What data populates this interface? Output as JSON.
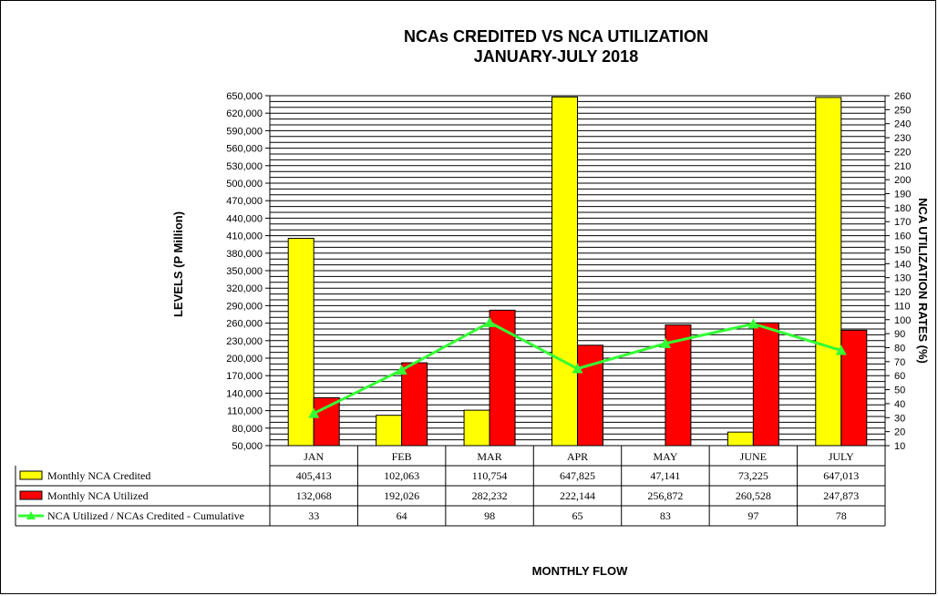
{
  "chart_data": {
    "type": "bar",
    "title": "NCAs CREDITED VS NCA UTILIZATION",
    "subtitle": "JANUARY-JULY 2018",
    "xlabel": "MONTHLY FLOW",
    "ylabel": "LEVELS (P Million)",
    "y2label": "NCA UTILIZATION RATES (%)",
    "categories": [
      "JAN",
      "FEB",
      "MAR",
      "APR",
      "MAY",
      "JUNE",
      "JULY"
    ],
    "ylim": [
      50000,
      650000
    ],
    "ystep": 30000,
    "y2lim": [
      10,
      260
    ],
    "y2step": 10,
    "grid": true,
    "legend": "table-bottom",
    "series": [
      {
        "name": "Monthly NCA Credited",
        "type": "bar",
        "color": "#FFFF00",
        "values": [
          405413,
          102063,
          110754,
          647825,
          47141,
          73225,
          647013
        ],
        "labels": [
          "405,413",
          "102,063",
          "110,754",
          "647,825",
          "47,141",
          "73,225",
          "647,013"
        ]
      },
      {
        "name": "Monthly NCA Utilized",
        "type": "bar",
        "color": "#FF0000",
        "values": [
          132068,
          192026,
          282232,
          222144,
          256872,
          260528,
          247873
        ],
        "labels": [
          "132,068",
          "192,026",
          "282,232",
          "222,144",
          "256,872",
          "260,528",
          "247,873"
        ]
      },
      {
        "name": "NCA Utilized  / NCAs Credited  - Cumulative",
        "type": "line",
        "axis": "right",
        "color": "#33FF33",
        "values": [
          33,
          64,
          98,
          65,
          83,
          97,
          78
        ],
        "labels": [
          "33",
          "64",
          "98",
          "65",
          "83",
          "97",
          "78"
        ]
      }
    ]
  }
}
